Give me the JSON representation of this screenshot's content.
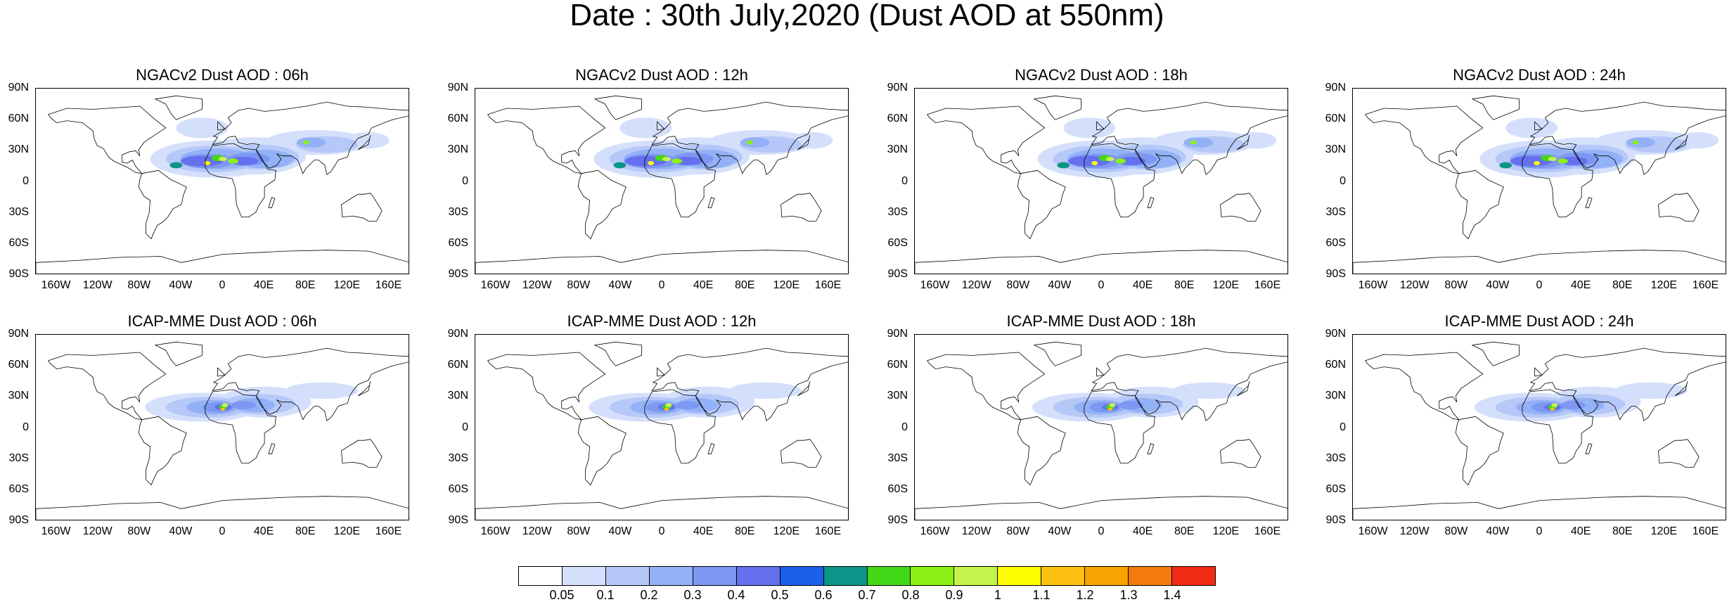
{
  "title": "Date : 30th July,2020 (Dust AOD at 550nm)",
  "lat_ticks": [
    "90N",
    "60N",
    "30N",
    "0",
    "30S",
    "60S",
    "90S"
  ],
  "lon_ticks": [
    "160W",
    "120W",
    "80W",
    "40W",
    "0",
    "40E",
    "80E",
    "120E",
    "160E"
  ],
  "panels": [
    {
      "title": "NGACv2 Dust AOD : 06h",
      "model": "NGACv2",
      "hour": "06h"
    },
    {
      "title": "NGACv2 Dust AOD : 12h",
      "model": "NGACv2",
      "hour": "12h"
    },
    {
      "title": "NGACv2 Dust AOD : 18h",
      "model": "NGACv2",
      "hour": "18h"
    },
    {
      "title": "NGACv2 Dust AOD : 24h",
      "model": "NGACv2",
      "hour": "24h"
    },
    {
      "title": "ICAP-MME Dust AOD : 06h",
      "model": "ICAP-MME",
      "hour": "06h"
    },
    {
      "title": "ICAP-MME Dust AOD : 12h",
      "model": "ICAP-MME",
      "hour": "12h"
    },
    {
      "title": "ICAP-MME Dust AOD : 18h",
      "model": "ICAP-MME",
      "hour": "18h"
    },
    {
      "title": "ICAP-MME Dust AOD : 24h",
      "model": "ICAP-MME",
      "hour": "24h"
    }
  ],
  "colorbar": {
    "labels": [
      "0.05",
      "0.1",
      "0.2",
      "0.3",
      "0.4",
      "0.5",
      "0.6",
      "0.7",
      "0.8",
      "0.9",
      "1",
      "1.1",
      "1.2",
      "1.3",
      "1.4"
    ],
    "colors": [
      "#ffffff",
      "#d4e0fb",
      "#b6c8f8",
      "#93b1f6",
      "#7d97f3",
      "#6470ee",
      "#1c5fea",
      "#0d9488",
      "#43d817",
      "#8cf114",
      "#c5f34d",
      "#ffff00",
      "#fcc010",
      "#f8a300",
      "#f47a10",
      "#f22b17"
    ]
  }
}
